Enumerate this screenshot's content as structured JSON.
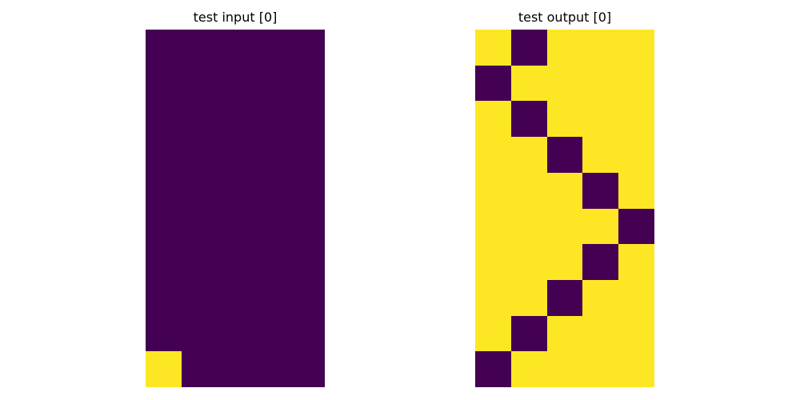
{
  "colors": {
    "0": "#440154",
    "1": "#fde725"
  },
  "panels": [
    {
      "title": "test input [0]",
      "grid": [
        [
          0,
          0,
          0,
          0,
          0
        ],
        [
          0,
          0,
          0,
          0,
          0
        ],
        [
          0,
          0,
          0,
          0,
          0
        ],
        [
          0,
          0,
          0,
          0,
          0
        ],
        [
          0,
          0,
          0,
          0,
          0
        ],
        [
          0,
          0,
          0,
          0,
          0
        ],
        [
          0,
          0,
          0,
          0,
          0
        ],
        [
          0,
          0,
          0,
          0,
          0
        ],
        [
          0,
          0,
          0,
          0,
          0
        ],
        [
          1,
          0,
          0,
          0,
          0
        ]
      ]
    },
    {
      "title": "test output [0]",
      "grid": [
        [
          1,
          0,
          1,
          1,
          1
        ],
        [
          0,
          1,
          1,
          1,
          1
        ],
        [
          1,
          0,
          1,
          1,
          1
        ],
        [
          1,
          1,
          0,
          1,
          1
        ],
        [
          1,
          1,
          1,
          0,
          1
        ],
        [
          1,
          1,
          1,
          1,
          0
        ],
        [
          1,
          1,
          1,
          0,
          1
        ],
        [
          1,
          1,
          0,
          1,
          1
        ],
        [
          1,
          0,
          1,
          1,
          1
        ],
        [
          0,
          1,
          1,
          1,
          1
        ]
      ]
    }
  ]
}
